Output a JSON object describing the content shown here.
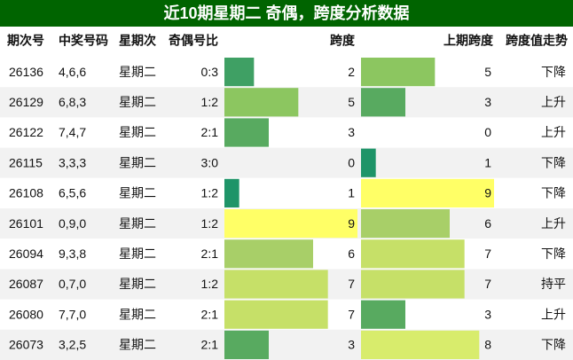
{
  "title": "近10期星期二 奇偶，跨度分析数据",
  "table": {
    "columns": [
      "期次号",
      "中奖号码",
      "星期次",
      "奇偶号比",
      "跨度",
      "上期跨度",
      "跨度值走势"
    ],
    "rows": [
      [
        "26136",
        "4,6,6",
        "星期二",
        "0:3",
        2,
        5,
        "下降"
      ],
      [
        "26129",
        "6,8,3",
        "星期二",
        "1:2",
        5,
        3,
        "上升"
      ],
      [
        "26122",
        "7,4,7",
        "星期二",
        "2:1",
        3,
        0,
        "上升"
      ],
      [
        "26115",
        "3,3,3",
        "星期二",
        "3:0",
        0,
        1,
        "下降"
      ],
      [
        "26108",
        "6,5,6",
        "星期二",
        "1:2",
        1,
        9,
        "下降"
      ],
      [
        "26101",
        "0,9,0",
        "星期二",
        "1:2",
        9,
        6,
        "上升"
      ],
      [
        "26094",
        "9,3,8",
        "星期二",
        "2:1",
        6,
        7,
        "下降"
      ],
      [
        "26087",
        "0,7,0",
        "星期二",
        "1:2",
        7,
        7,
        "持平"
      ],
      [
        "26080",
        "7,7,0",
        "星期二",
        "2:1",
        7,
        3,
        "上升"
      ],
      [
        "26073",
        "3,2,5",
        "星期二",
        "2:1",
        3,
        8,
        "下降"
      ]
    ],
    "bar_colors": [
      "#ffffff",
      "#1e9468",
      "#3fa064",
      "#58aa60",
      "#72b85e",
      "#8cc660",
      "#a8cf68",
      "#c6e068",
      "#d8ec6c",
      "#ffff66"
    ]
  }
}
